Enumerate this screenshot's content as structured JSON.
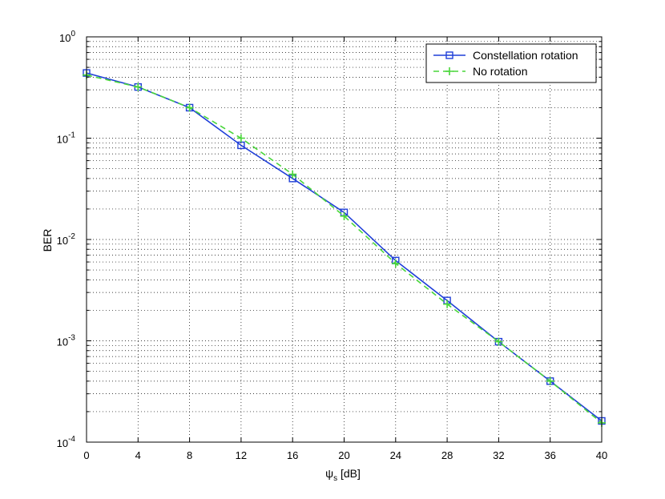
{
  "chart_data": {
    "type": "line",
    "title": "",
    "xlabel": "ψ",
    "xlabel_sub": "s",
    "xlabel_unit": " [dB]",
    "ylabel": "BER",
    "y_scale": "log",
    "xlim": [
      0,
      40
    ],
    "ylim": [
      0.0001,
      1
    ],
    "x_ticks": [
      "0",
      "4",
      "8",
      "12",
      "16",
      "20",
      "24",
      "28",
      "32",
      "36",
      "40"
    ],
    "y_tick_exponents": [
      "0",
      "-1",
      "-2",
      "-3",
      "-4"
    ],
    "y_tick_base": "10",
    "grid": true,
    "legend_position": "top-right",
    "x": [
      0,
      4,
      8,
      12,
      16,
      20,
      24,
      28,
      32,
      36,
      40
    ],
    "series": [
      {
        "name": "Constellation rotation",
        "color": "#1f3fd8",
        "line_style": "solid",
        "marker": "square",
        "values": [
          0.44,
          0.32,
          0.2,
          0.085,
          0.04,
          0.0185,
          0.0062,
          0.0025,
          0.00098,
          0.0004,
          0.000162
        ]
      },
      {
        "name": "No rotation",
        "color": "#49d63a",
        "line_style": "dashed",
        "marker": "plus",
        "values": [
          0.42,
          0.32,
          0.2,
          0.1,
          0.044,
          0.017,
          0.0058,
          0.0023,
          0.00098,
          0.0004,
          0.000155
        ]
      }
    ]
  }
}
